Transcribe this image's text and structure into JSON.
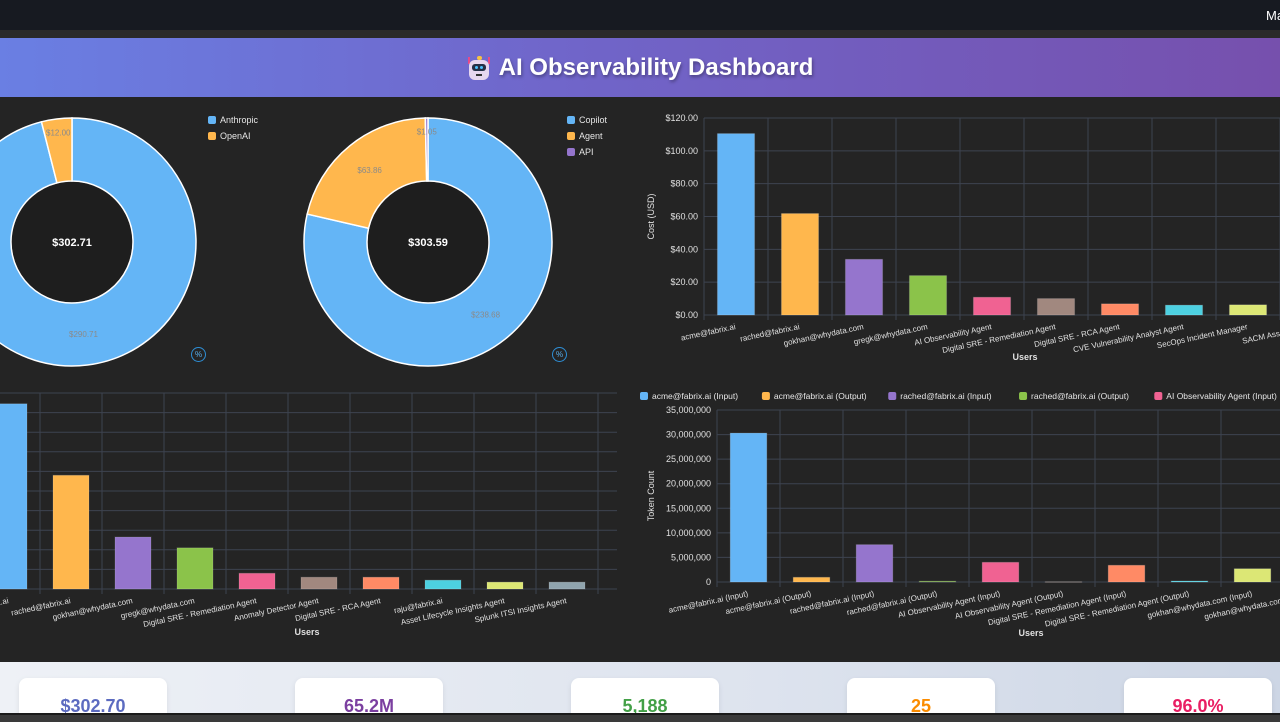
{
  "topbar": {
    "user_label": "Ma"
  },
  "header": {
    "icon": "robot-emoji",
    "title": "AI Observability Dashboard"
  },
  "colors": {
    "palette": [
      "#64b5f6",
      "#ffb74d",
      "#9575cd",
      "#8bc34a",
      "#f06292",
      "#a1887f",
      "#ff8a65",
      "#4dd0e1",
      "#dce775",
      "#90a4ae"
    ]
  },
  "chart_data": [
    {
      "id": "provider-cost-donut",
      "type": "pie",
      "variant": "doughnut",
      "center_label": "$302.71",
      "labels": [
        "Anthropic",
        "OpenAI"
      ],
      "values": [
        290.71,
        12.0
      ],
      "value_labels": [
        "$290.71",
        "$12.00"
      ],
      "colors": [
        "#64b5f6",
        "#ffb74d"
      ],
      "legend": "top-right",
      "toggle_label": "%"
    },
    {
      "id": "source-cost-donut",
      "type": "pie",
      "variant": "doughnut",
      "center_label": "$303.59",
      "labels": [
        "Copilot",
        "Agent",
        "API"
      ],
      "values": [
        238.68,
        63.86,
        1.05
      ],
      "value_labels": [
        "$238.68",
        "$63.86",
        "$1.05"
      ],
      "colors": [
        "#64b5f6",
        "#ffb74d",
        "#9575cd"
      ],
      "legend": "top-right",
      "toggle_label": "%"
    },
    {
      "id": "cost-by-user-bar",
      "type": "bar",
      "title": "",
      "xlabel": "Users",
      "ylabel": "Cost (USD)",
      "ylim": [
        0,
        120
      ],
      "yticks": [
        0,
        20,
        40,
        60,
        80,
        100,
        120
      ],
      "ytick_labels": [
        "$0.00",
        "$20.00",
        "$40.00",
        "$60.00",
        "$80.00",
        "$100.00",
        "$120.00"
      ],
      "categories": [
        "acme@fabrix.ai",
        "rached@fabrix.ai",
        "gokhan@whydata.com",
        "gregk@whydata.com",
        "AI Observability Agent",
        "Digital SRE - Remediation Agent",
        "Digital SRE - RCA Agent",
        "CVE Vulnerability Analyst Agent",
        "SecOps Incident Manager",
        "SACM Asset Owner"
      ],
      "values": [
        110.5,
        61.8,
        33.9,
        24.0,
        10.8,
        10.0,
        6.8,
        6.0,
        6.2,
        6.0
      ],
      "grid": true
    },
    {
      "id": "requests-by-user-bar",
      "type": "bar",
      "title": "",
      "xlabel": "Users",
      "ylabel": "",
      "note": "y-axis tick labels are cut off; values expressed in grid units (10 gridline intervals)",
      "ylim": [
        0,
        10
      ],
      "categories": [
        "acme@fabrix.ai",
        "rached@fabrix.ai",
        "gokhan@whydata.com",
        "gregk@whydata.com",
        "Digital SRE - Remediation Agent",
        "Anomaly Detector Agent",
        "Digital SRE - RCA Agent",
        "raju@fabrix.ai",
        "Asset Lifecycle Insights Agent",
        "Splunk ITSI Insights Agent"
      ],
      "values": [
        9.45,
        5.8,
        2.65,
        2.1,
        0.8,
        0.6,
        0.6,
        0.45,
        0.35,
        0.35
      ],
      "grid": true
    },
    {
      "id": "tokens-by-user-bar",
      "type": "bar",
      "title": "",
      "xlabel": "Users",
      "ylabel": "Token Count",
      "ylim": [
        0,
        35000000
      ],
      "yticks": [
        0,
        5000000,
        10000000,
        15000000,
        20000000,
        25000000,
        30000000,
        35000000
      ],
      "ytick_labels": [
        "0",
        "5,000,000",
        "10,000,000",
        "15,000,000",
        "20,000,000",
        "25,000,000",
        "30,000,000",
        "35,000,000"
      ],
      "legend": "top",
      "legend_labels": [
        "acme@fabrix.ai (Input)",
        "acme@fabrix.ai (Output)",
        "rached@fabrix.ai (Input)",
        "rached@fabrix.ai (Output)",
        "AI Observability Agent (Input)",
        "AI Observability Agent (Output)"
      ],
      "categories": [
        "acme@fabrix.ai (Input)",
        "acme@fabrix.ai (Output)",
        "rached@fabrix.ai (Input)",
        "rached@fabrix.ai (Output)",
        "AI Observability Agent (Input)",
        "AI Observability Agent (Output)",
        "Digital SRE - Remediation Agent (Input)",
        "Digital SRE - Remediation Agent (Output)",
        "gokhan@whydata.com (Input)",
        "gokhan@whydata.com (Output)"
      ],
      "values": [
        30300000,
        950000,
        7600000,
        150000,
        4000000,
        50000,
        3400000,
        200000,
        2700000,
        0
      ],
      "bar_colors": [
        "#64b5f6",
        "#ffb74d",
        "#9575cd",
        "#8bc34a",
        "#f06292",
        "#a1887f",
        "#ff8a65",
        "#4dd0e1",
        "#dce775",
        "#90a4ae"
      ],
      "grid": true
    }
  ],
  "summary": {
    "cards": [
      {
        "value": "$302.70",
        "color": "#5c6bc0"
      },
      {
        "value": "65.2M",
        "color": "#7b3fa0"
      },
      {
        "value": "5,188",
        "color": "#43a047"
      },
      {
        "value": "25",
        "color": "#fb8c00"
      },
      {
        "value": "96.0%",
        "color": "#e91e63"
      }
    ]
  }
}
